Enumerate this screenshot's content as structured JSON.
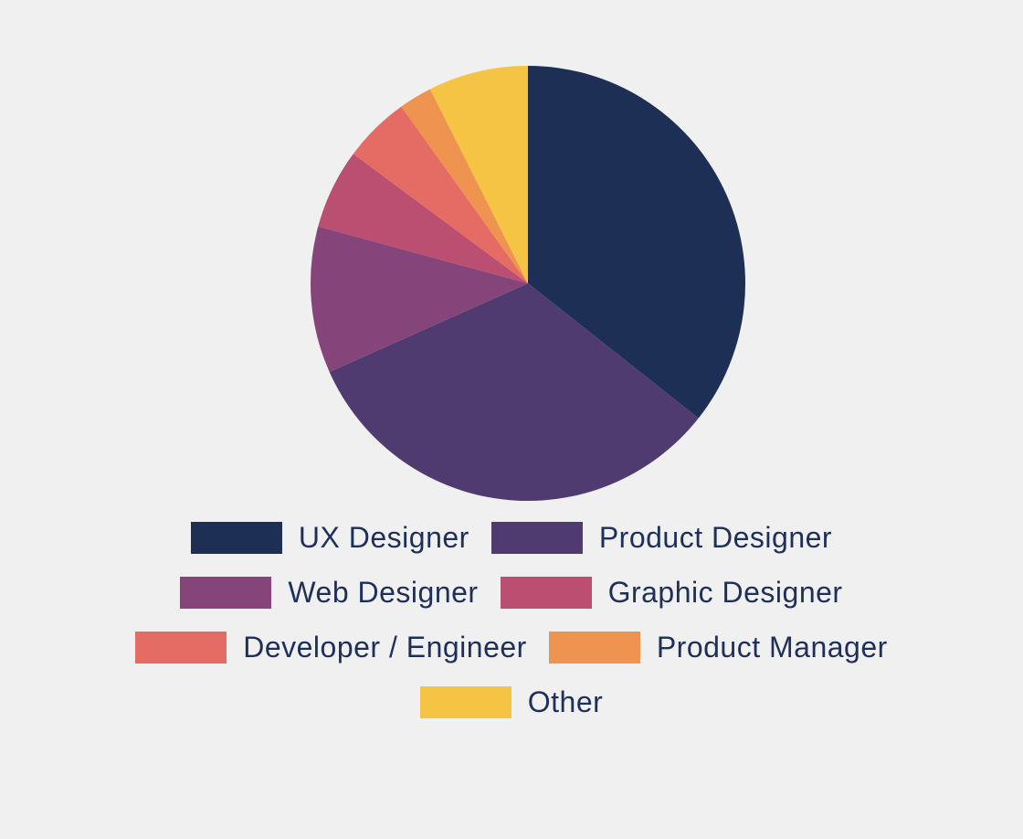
{
  "chart_data": {
    "type": "pie",
    "title": "",
    "slices": [
      {
        "label": "UX Designer",
        "value": 36,
        "color": "#1e2f55"
      },
      {
        "label": "Product Designer",
        "value": 33,
        "color": "#4f3b6f"
      },
      {
        "label": "Web Designer",
        "value": 11,
        "color": "#85457a"
      },
      {
        "label": "Graphic Designer",
        "value": 6,
        "color": "#ba4f71"
      },
      {
        "label": "Developer / Engineer",
        "value": 5,
        "color": "#e46c65"
      },
      {
        "label": "Product Manager",
        "value": 2.5,
        "color": "#ee9350"
      },
      {
        "label": "Other",
        "value": 7.5,
        "color": "#f5c444"
      }
    ],
    "legend_position": "bottom"
  }
}
